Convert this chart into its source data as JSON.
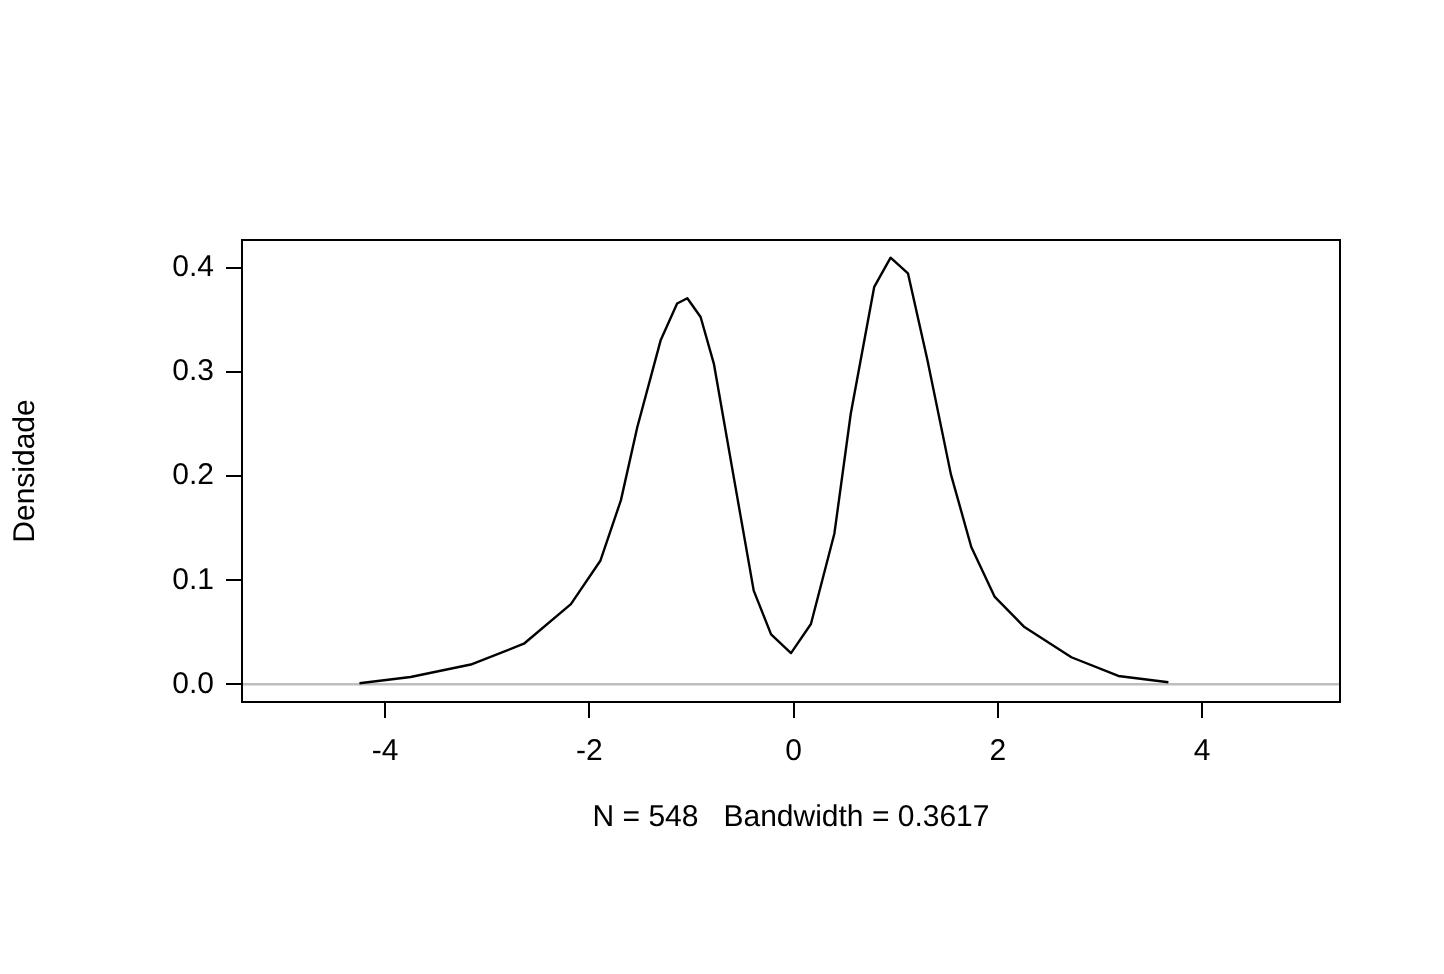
{
  "chart_data": {
    "type": "line",
    "xlabel": "N = 548   Bandwidth = 0.3617",
    "ylabel": "Densidade",
    "xlim": [
      -5.4,
      5.35
    ],
    "ylim": [
      -0.017,
      0.427
    ],
    "xticks": [
      -4,
      -2,
      0,
      2,
      4
    ],
    "yticks": [
      {
        "value": 0,
        "label": "0.0"
      },
      {
        "value": 0.1,
        "label": "0.1"
      },
      {
        "value": 0.2,
        "label": "0.2"
      },
      {
        "value": 0.3,
        "label": "0.3"
      },
      {
        "value": 0.4,
        "label": "0.4"
      }
    ],
    "grid": false,
    "legend": false,
    "marker": "none",
    "line_style": "solid",
    "ref_lines": [
      {
        "axis": "y",
        "value": 0,
        "color": "#bebebe"
      }
    ],
    "series": [
      {
        "color": "#000000",
        "x": [
          -4.25,
          -3.75,
          -3.16,
          -2.64,
          -2.18,
          -1.89,
          -1.69,
          -1.53,
          -1.3,
          -1.14,
          -1.04,
          -0.91,
          -0.78,
          -0.58,
          -0.39,
          -0.22,
          -0.025,
          0.17,
          0.4,
          0.56,
          0.79,
          0.95,
          1.12,
          1.31,
          1.54,
          1.74,
          1.97,
          2.26,
          2.72,
          3.18,
          3.67
        ],
        "values": [
          0.001,
          0.007,
          0.019,
          0.039,
          0.077,
          0.119,
          0.177,
          0.247,
          0.331,
          0.366,
          0.371,
          0.353,
          0.308,
          0.196,
          0.09,
          0.048,
          0.03,
          0.058,
          0.145,
          0.26,
          0.382,
          0.41,
          0.395,
          0.312,
          0.202,
          0.132,
          0.084,
          0.055,
          0.026,
          0.008,
          0.002
        ]
      }
    ]
  }
}
